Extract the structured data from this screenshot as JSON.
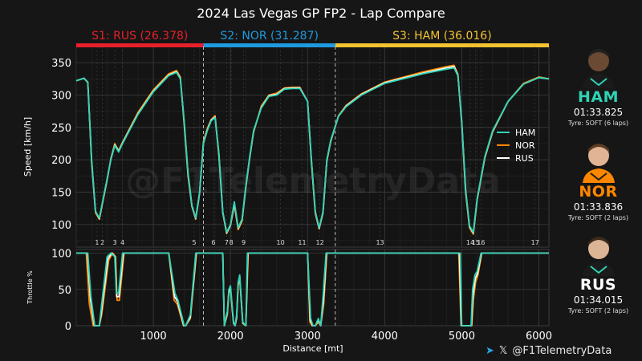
{
  "chart_data": {
    "type": "line",
    "title": "2024 Las Vegas GP FP2 - Lap Compare",
    "watermark": "@F1TelemetryData",
    "xlabel": "Distance [mt]",
    "ylabel_speed": "Speed [km/h]",
    "ylabel_throttle": "Throttle %",
    "xlim": [
      0,
      6130
    ],
    "ylim_speed": [
      65,
      375
    ],
    "ylim_throttle": [
      0,
      105
    ],
    "x_ticks": [
      "1000",
      "2000",
      "3000",
      "4000",
      "5000",
      "6000"
    ],
    "x_tick_values": [
      1000,
      2000,
      3000,
      4000,
      5000,
      6000
    ],
    "speed_ticks": [
      "100",
      "150",
      "200",
      "250",
      "300",
      "350"
    ],
    "speed_tick_values": [
      100,
      150,
      200,
      250,
      300,
      350
    ],
    "throttle_ticks": [
      "0",
      "50",
      "100"
    ],
    "throttle_tick_values": [
      0,
      50,
      100
    ],
    "grid": true,
    "legend_position": "right",
    "sectors": [
      {
        "label": "S1: RUS (26.378)",
        "color": "#e8202a",
        "start": 0,
        "end": 1650
      },
      {
        "label": "S2: NOR (31.287)",
        "color": "#1e9ae0",
        "start": 1650,
        "end": 3360
      },
      {
        "label": "S3: HAM (36.016)",
        "color": "#f4c430",
        "start": 3360,
        "end": 6130
      }
    ],
    "sector_boundaries": [
      1650,
      3360
    ],
    "corners": [
      {
        "label": "1",
        "x": 270
      },
      {
        "label": "2",
        "x": 340
      },
      {
        "label": "3",
        "x": 500
      },
      {
        "label": "4",
        "x": 600
      },
      {
        "label": "5",
        "x": 1530
      },
      {
        "label": "6",
        "x": 1780
      },
      {
        "label": "7",
        "x": 1950
      },
      {
        "label": "8",
        "x": 2010
      },
      {
        "label": "9",
        "x": 2170
      },
      {
        "label": "10",
        "x": 2650
      },
      {
        "label": "11",
        "x": 2930
      },
      {
        "label": "12",
        "x": 3160
      },
      {
        "label": "13",
        "x": 3940
      },
      {
        "label": "14",
        "x": 5110
      },
      {
        "label": "15",
        "x": 5180
      },
      {
        "label": "16",
        "x": 5250
      },
      {
        "label": "17",
        "x": 5950
      }
    ],
    "series": [
      {
        "name": "HAM",
        "color": "#2ed3b5",
        "speed_x": [
          0,
          100,
          150,
          200,
          250,
          300,
          350,
          400,
          450,
          500,
          550,
          600,
          800,
          1000,
          1200,
          1300,
          1350,
          1400,
          1450,
          1500,
          1550,
          1600,
          1650,
          1700,
          1750,
          1800,
          1850,
          1900,
          1950,
          2000,
          2050,
          2100,
          2150,
          2200,
          2250,
          2300,
          2400,
          2500,
          2600,
          2700,
          2800,
          2900,
          3000,
          3050,
          3100,
          3150,
          3200,
          3250,
          3300,
          3400,
          3500,
          3700,
          4000,
          4500,
          4800,
          4900,
          4950,
          5000,
          5050,
          5100,
          5150,
          5200,
          5300,
          5400,
          5600,
          5800,
          6000,
          6130
        ],
        "speed": [
          322,
          326,
          320,
          200,
          120,
          110,
          140,
          170,
          200,
          222,
          212,
          225,
          270,
          305,
          330,
          335,
          325,
          260,
          180,
          130,
          110,
          150,
          225,
          245,
          260,
          265,
          210,
          120,
          88,
          100,
          135,
          95,
          108,
          160,
          205,
          245,
          280,
          298,
          300,
          309,
          310,
          310,
          290,
          200,
          120,
          95,
          120,
          200,
          230,
          267,
          282,
          300,
          318,
          333,
          340,
          342,
          330,
          260,
          155,
          98,
          88,
          140,
          205,
          245,
          290,
          317,
          327,
          325
        ],
        "throttle_x": [
          0,
          150,
          190,
          240,
          300,
          320,
          400,
          450,
          500,
          520,
          550,
          600,
          1200,
          1280,
          1320,
          1400,
          1420,
          1480,
          1550,
          1600,
          1900,
          1920,
          1960,
          1980,
          2000,
          2020,
          2040,
          2060,
          2080,
          2100,
          2120,
          2160,
          2200,
          2220,
          3000,
          3040,
          3070,
          3100,
          3140,
          3170,
          3200,
          3240,
          3260,
          4980,
          5000,
          5080,
          5120,
          5140,
          5170,
          5200,
          5250,
          6130
        ],
        "throttle": [
          100,
          100,
          40,
          0,
          0,
          20,
          95,
          100,
          95,
          45,
          45,
          100,
          100,
          45,
          35,
          0,
          0,
          15,
          100,
          100,
          100,
          0,
          20,
          50,
          55,
          30,
          5,
          0,
          15,
          60,
          70,
          5,
          0,
          100,
          100,
          10,
          0,
          0,
          10,
          0,
          40,
          100,
          100,
          100,
          0,
          0,
          0,
          50,
          70,
          75,
          100,
          100
        ]
      },
      {
        "name": "NOR",
        "color": "#ff8700",
        "speed_x": [
          0,
          100,
          150,
          200,
          250,
          300,
          350,
          400,
          450,
          500,
          550,
          600,
          800,
          1000,
          1200,
          1300,
          1350,
          1400,
          1450,
          1500,
          1550,
          1600,
          1650,
          1700,
          1750,
          1800,
          1850,
          1900,
          1950,
          2000,
          2050,
          2100,
          2150,
          2200,
          2250,
          2300,
          2400,
          2500,
          2600,
          2700,
          2800,
          2900,
          3000,
          3050,
          3100,
          3150,
          3200,
          3250,
          3300,
          3400,
          3500,
          3700,
          4000,
          4500,
          4800,
          4900,
          4950,
          5000,
          5050,
          5100,
          5150,
          5200,
          5300,
          5400,
          5600,
          5800,
          6000,
          6130
        ],
        "speed": [
          322,
          326,
          319,
          195,
          118,
          108,
          138,
          168,
          202,
          225,
          214,
          227,
          273,
          308,
          333,
          338,
          328,
          255,
          175,
          128,
          108,
          148,
          228,
          248,
          262,
          268,
          205,
          118,
          86,
          98,
          130,
          92,
          105,
          158,
          203,
          243,
          283,
          300,
          303,
          311,
          312,
          312,
          290,
          195,
          117,
          93,
          118,
          198,
          228,
          268,
          284,
          302,
          320,
          336,
          344,
          346,
          332,
          255,
          150,
          95,
          85,
          138,
          203,
          243,
          290,
          318,
          328,
          325
        ],
        "throttle_x": [
          0,
          130,
          170,
          220,
          300,
          330,
          420,
          470,
          510,
          530,
          560,
          620,
          1200,
          1270,
          1310,
          1390,
          1420,
          1480,
          1560,
          1610,
          1900,
          1920,
          1960,
          1980,
          2000,
          2020,
          2040,
          2060,
          2080,
          2100,
          2120,
          2160,
          2200,
          2230,
          3000,
          3030,
          3060,
          3100,
          3140,
          3170,
          3210,
          3250,
          3270,
          4960,
          4990,
          5090,
          5130,
          5150,
          5180,
          5210,
          5260,
          6130
        ],
        "throttle": [
          100,
          100,
          30,
          0,
          0,
          15,
          90,
          100,
          95,
          35,
          35,
          100,
          100,
          35,
          30,
          0,
          0,
          10,
          100,
          100,
          100,
          0,
          15,
          45,
          50,
          25,
          3,
          0,
          10,
          55,
          65,
          3,
          0,
          100,
          100,
          5,
          0,
          0,
          5,
          0,
          30,
          100,
          100,
          100,
          0,
          0,
          0,
          35,
          60,
          70,
          100,
          100
        ]
      },
      {
        "name": "RUS",
        "color": "#ffffff",
        "speed_x": [
          0,
          100,
          150,
          200,
          250,
          300,
          350,
          400,
          450,
          500,
          550,
          600,
          800,
          1000,
          1200,
          1300,
          1350,
          1400,
          1450,
          1500,
          1550,
          1600,
          1650,
          1700,
          1750,
          1800,
          1850,
          1900,
          1950,
          2000,
          2050,
          2100,
          2150,
          2200,
          2250,
          2300,
          2400,
          2500,
          2600,
          2700,
          2800,
          2900,
          3000,
          3050,
          3100,
          3150,
          3200,
          3250,
          3300,
          3400,
          3500,
          3700,
          4000,
          4500,
          4800,
          4900,
          4950,
          5000,
          5050,
          5100,
          5150,
          5200,
          5300,
          5400,
          5600,
          5800,
          6000,
          6130
        ],
        "speed": [
          322,
          326,
          320,
          198,
          120,
          109,
          139,
          169,
          201,
          223,
          213,
          226,
          271,
          306,
          331,
          336,
          326,
          258,
          178,
          129,
          109,
          149,
          226,
          246,
          261,
          266,
          208,
          119,
          87,
          99,
          133,
          94,
          107,
          159,
          204,
          244,
          281,
          299,
          301,
          310,
          311,
          311,
          290,
          198,
          119,
          94,
          119,
          199,
          229,
          267,
          283,
          301,
          319,
          334,
          342,
          344,
          331,
          258,
          153,
          97,
          87,
          139,
          204,
          244,
          290,
          317,
          327,
          325
        ],
        "throttle_x": [
          0,
          145,
          185,
          235,
          300,
          325,
          410,
          460,
          505,
          525,
          555,
          610,
          1200,
          1275,
          1315,
          1395,
          1420,
          1480,
          1555,
          1605,
          1900,
          1920,
          1960,
          1980,
          2000,
          2020,
          2040,
          2060,
          2080,
          2100,
          2120,
          2160,
          2200,
          2225,
          3000,
          3035,
          3065,
          3100,
          3140,
          3170,
          3205,
          3245,
          3265,
          4970,
          4995,
          5085,
          5125,
          5145,
          5175,
          5205,
          5255,
          6130
        ],
        "throttle": [
          100,
          100,
          35,
          0,
          0,
          18,
          92,
          100,
          95,
          40,
          40,
          100,
          100,
          40,
          33,
          0,
          0,
          12,
          100,
          100,
          100,
          0,
          18,
          48,
          52,
          28,
          4,
          0,
          12,
          58,
          68,
          4,
          0,
          100,
          100,
          8,
          0,
          0,
          8,
          0,
          35,
          100,
          100,
          100,
          0,
          0,
          0,
          42,
          65,
          72,
          100,
          100
        ]
      }
    ]
  },
  "drivers": [
    {
      "code": "HAM",
      "color": "#2ed3b5",
      "time": "01:33.825",
      "tyre": "Tyre: SOFT (6 laps)",
      "suit": "#1b1b1b",
      "trim": "#2ed3b5"
    },
    {
      "code": "NOR",
      "color": "#ff8700",
      "time": "01:33.836",
      "tyre": "Tyre: SOFT (2 laps)",
      "suit": "#ff8700",
      "trim": "#1d1d1d"
    },
    {
      "code": "RUS",
      "color": "#ffffff",
      "time": "01:34.015",
      "tyre": "Tyre: SOFT (2 laps)",
      "suit": "#1b1b1b",
      "trim": "#2ed3b5"
    }
  ],
  "credit": {
    "text": "@F1TelemetryData",
    "icons": [
      "telegram-icon",
      "x-icon"
    ]
  }
}
